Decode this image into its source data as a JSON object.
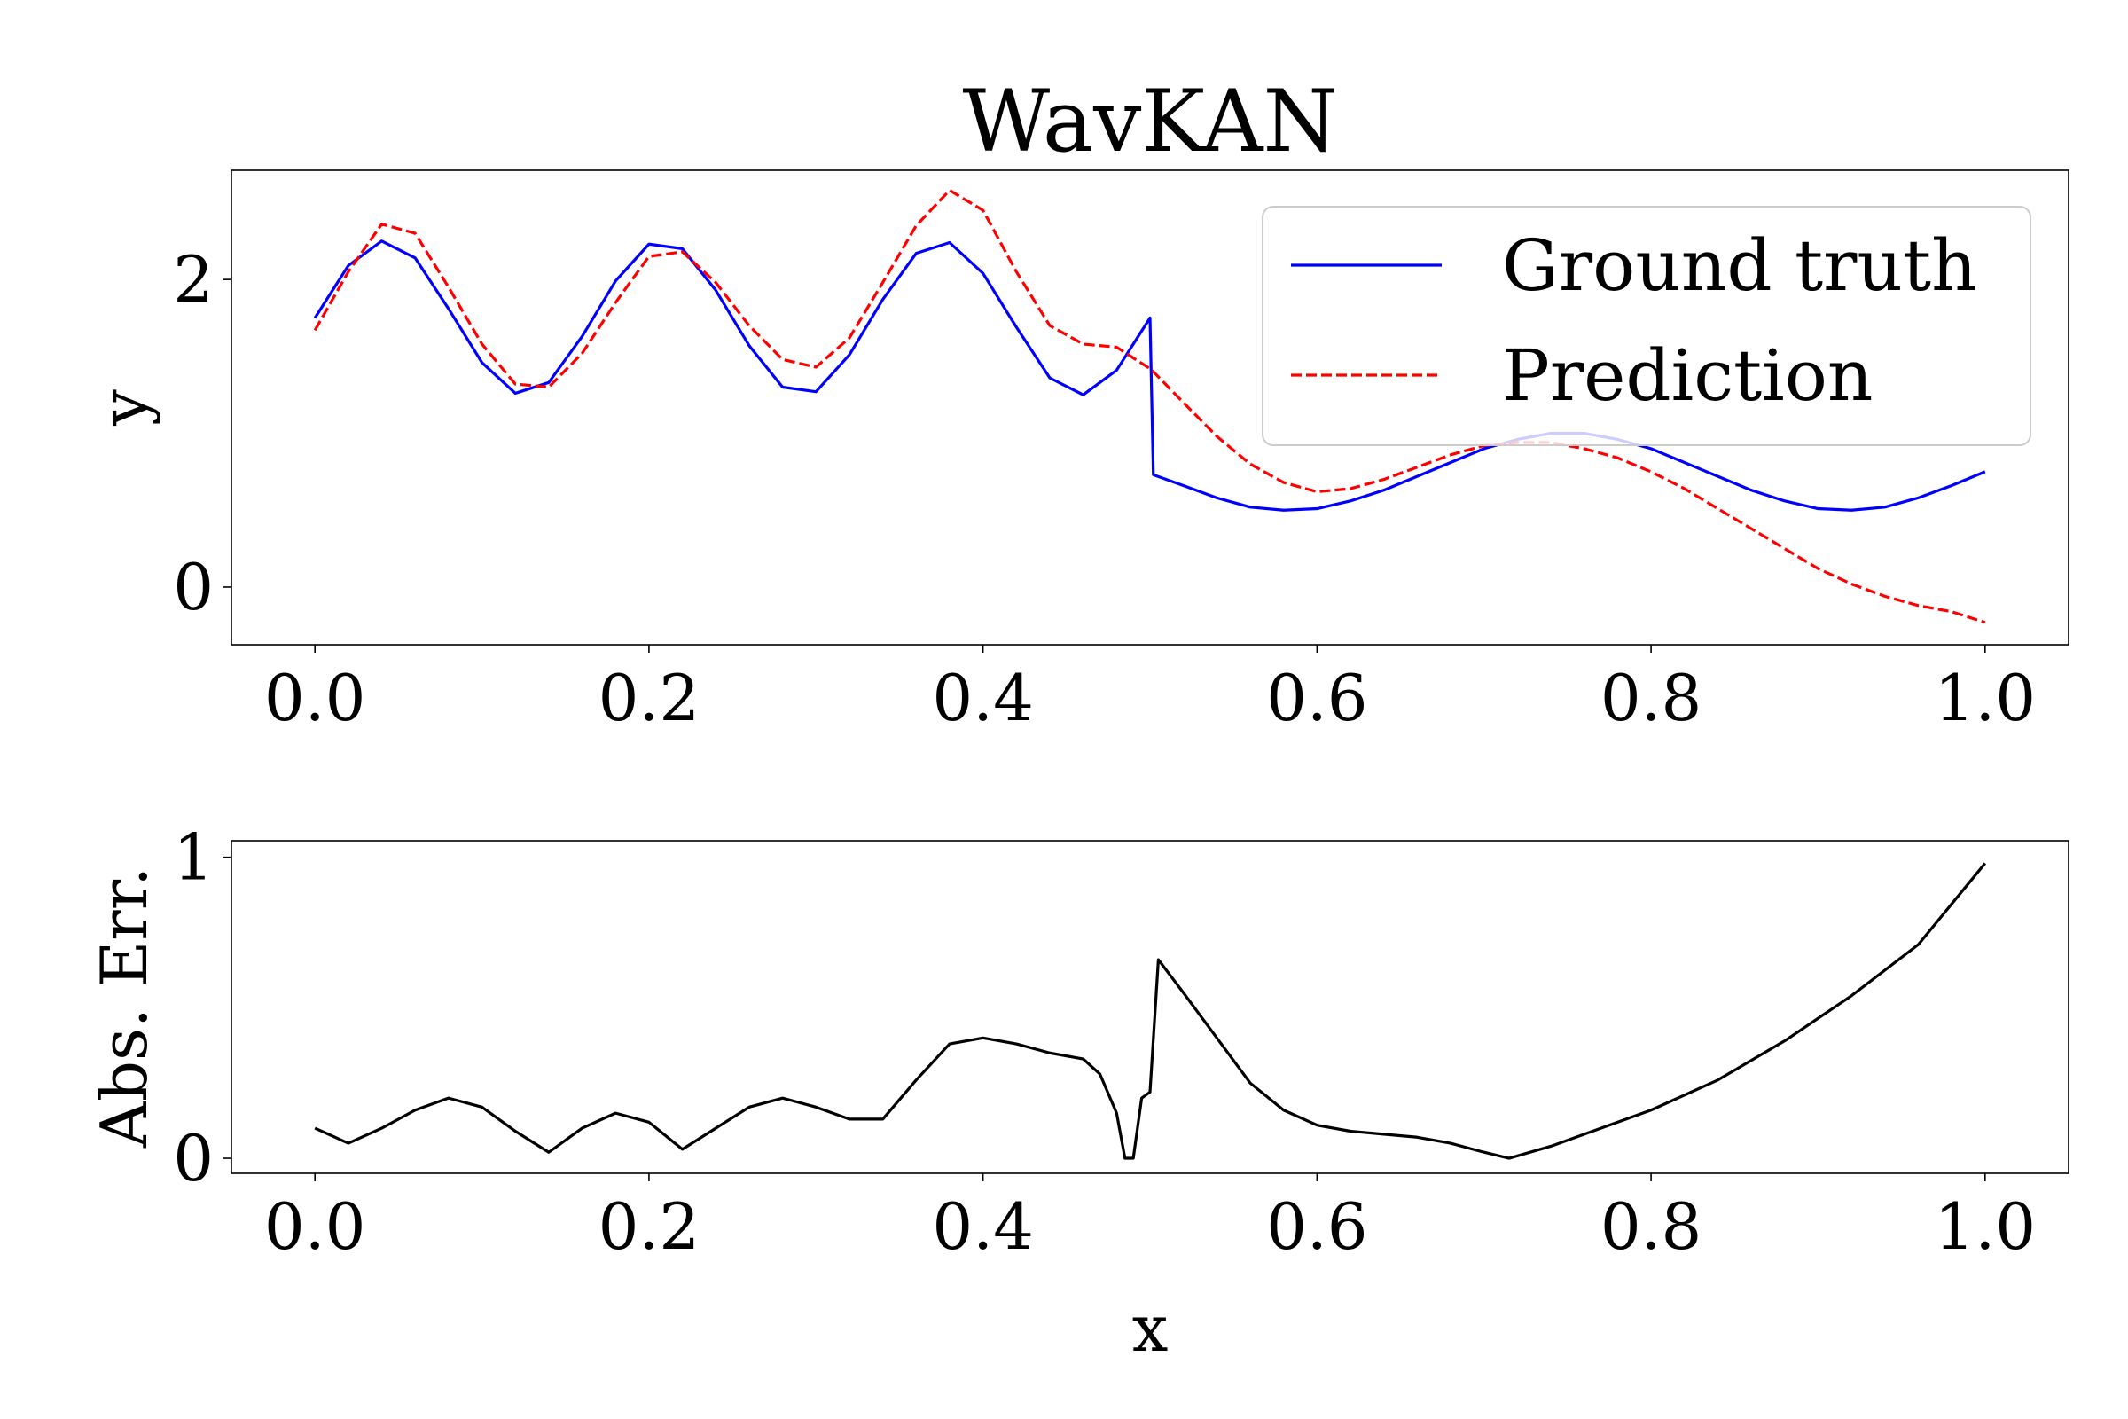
{
  "chart_data": [
    {
      "type": "line",
      "title": "WavKAN",
      "ylabel": "y",
      "x": [
        0,
        0.02,
        0.04,
        0.06,
        0.08,
        0.1,
        0.12,
        0.14,
        0.16,
        0.18,
        0.2,
        0.22,
        0.24,
        0.26,
        0.28,
        0.3,
        0.32,
        0.34,
        0.36,
        0.38,
        0.4,
        0.42,
        0.44,
        0.46,
        0.48,
        0.5,
        0.502,
        0.52,
        0.54,
        0.56,
        0.58,
        0.6,
        0.62,
        0.64,
        0.66,
        0.68,
        0.7,
        0.72,
        0.74,
        0.76,
        0.78,
        0.8,
        0.82,
        0.84,
        0.86,
        0.88,
        0.9,
        0.92,
        0.94,
        0.96,
        0.98,
        1.0
      ],
      "series": [
        {
          "name": "Ground truth",
          "color": "#0000ff",
          "dash": false,
          "values": [
            1.75,
            2.09,
            2.25,
            2.14,
            1.81,
            1.46,
            1.26,
            1.33,
            1.63,
            1.99,
            2.23,
            2.2,
            1.93,
            1.57,
            1.3,
            1.27,
            1.51,
            1.87,
            2.17,
            2.24,
            2.04,
            1.69,
            1.36,
            1.25,
            1.41,
            1.75,
            0.73,
            0.66,
            0.58,
            0.52,
            0.5,
            0.51,
            0.56,
            0.63,
            0.72,
            0.81,
            0.9,
            0.96,
            1.0,
            1.0,
            0.96,
            0.9,
            0.81,
            0.72,
            0.63,
            0.56,
            0.51,
            0.5,
            0.52,
            0.58,
            0.66,
            0.75
          ]
        },
        {
          "name": "Prediction",
          "color": "#ff0000",
          "dash": true,
          "values": [
            1.67,
            2.05,
            2.36,
            2.3,
            1.95,
            1.58,
            1.32,
            1.3,
            1.52,
            1.85,
            2.15,
            2.18,
            1.98,
            1.7,
            1.48,
            1.43,
            1.62,
            1.98,
            2.35,
            2.58,
            2.45,
            2.05,
            1.7,
            1.58,
            1.56,
            1.42,
            1.4,
            1.2,
            0.98,
            0.8,
            0.68,
            0.62,
            0.64,
            0.7,
            0.78,
            0.86,
            0.92,
            0.94,
            0.94,
            0.9,
            0.84,
            0.75,
            0.64,
            0.51,
            0.38,
            0.25,
            0.12,
            0.02,
            -0.06,
            -0.12,
            -0.16,
            -0.23
          ]
        }
      ],
      "xlim": [
        -0.05,
        1.05
      ],
      "ylim": [
        -0.375,
        2.71
      ],
      "xticks": [
        {
          "value": 0,
          "label": "0.0"
        },
        0.2,
        0.4,
        0.6,
        0.8,
        {
          "value": 1,
          "label": "1.0"
        }
      ],
      "yticks": [
        0,
        2
      ],
      "legend": "upper right"
    },
    {
      "type": "line",
      "xlabel": "x",
      "ylabel": "Abs. Err.",
      "x": [
        0,
        0.02,
        0.04,
        0.06,
        0.08,
        0.1,
        0.12,
        0.14,
        0.16,
        0.18,
        0.2,
        0.22,
        0.24,
        0.26,
        0.28,
        0.3,
        0.32,
        0.34,
        0.36,
        0.38,
        0.4,
        0.42,
        0.44,
        0.46,
        0.47,
        0.48,
        0.485,
        0.49,
        0.495,
        0.5,
        0.505,
        0.52,
        0.54,
        0.56,
        0.58,
        0.6,
        0.62,
        0.64,
        0.66,
        0.68,
        0.7,
        0.715,
        0.74,
        0.76,
        0.8,
        0.84,
        0.88,
        0.92,
        0.96,
        1.0
      ],
      "series": [
        {
          "color": "#000000",
          "dash": false,
          "values": [
            0.1,
            0.05,
            0.1,
            0.16,
            0.2,
            0.17,
            0.09,
            0.02,
            0.1,
            0.15,
            0.12,
            0.03,
            0.1,
            0.17,
            0.2,
            0.17,
            0.13,
            0.13,
            0.26,
            0.38,
            0.4,
            0.38,
            0.35,
            0.33,
            0.28,
            0.15,
            0,
            0,
            0.2,
            0.22,
            0.66,
            0.55,
            0.4,
            0.25,
            0.16,
            0.11,
            0.09,
            0.08,
            0.07,
            0.05,
            0.02,
            0,
            0.04,
            0.08,
            0.16,
            0.26,
            0.39,
            0.54,
            0.71,
            0.98
          ]
        }
      ],
      "xlim": [
        -0.05,
        1.05
      ],
      "ylim": [
        -0.05,
        1.055
      ],
      "xticks": [
        {
          "value": 0,
          "label": "0.0"
        },
        0.2,
        0.4,
        0.6,
        0.8,
        {
          "value": 1,
          "label": "1.0"
        }
      ],
      "yticks": [
        0,
        1
      ]
    }
  ]
}
